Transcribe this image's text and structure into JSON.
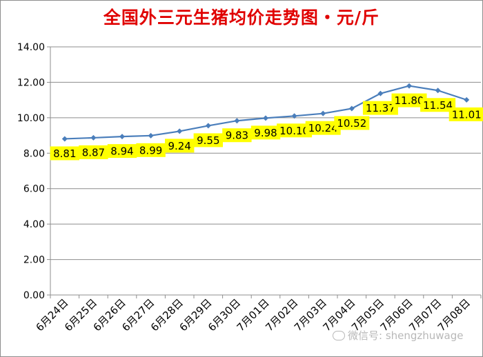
{
  "watermark": {
    "text": "微信号: shengzhuwage",
    "icon": "wechat-icon"
  },
  "chart_data": {
    "type": "line",
    "title": "全国外三元生猪均价走势图・元/斤",
    "xlabel": "",
    "ylabel": "",
    "categories": [
      "6月24日",
      "6月25日",
      "6月26日",
      "6月27日",
      "6月28日",
      "6月29日",
      "6月30日",
      "7月01日",
      "7月02日",
      "7月03日",
      "7月04日",
      "7月05日",
      "7月06日",
      "7月07日",
      "7月08日"
    ],
    "series": [
      {
        "values": [
          8.81,
          8.87,
          8.94,
          8.99,
          9.24,
          9.55,
          9.83,
          9.98,
          10.1,
          10.24,
          10.52,
          11.37,
          11.8,
          11.54,
          11.01
        ]
      }
    ],
    "value_labels": [
      "8.81",
      "8.87",
      "8.94",
      "8.99",
      "9.24",
      "9.55",
      "9.83",
      "9.98",
      "10.10",
      "10.24",
      "10.52",
      "11.37",
      "11.80",
      "11.54",
      "11.01"
    ],
    "ylim": [
      0,
      14
    ],
    "yticks": [
      "0.00",
      "2.00",
      "4.00",
      "6.00",
      "8.00",
      "10.00",
      "12.00",
      "14.00"
    ],
    "grid": true,
    "legend": "none",
    "colors": {
      "line": "#4a7ebb",
      "label_bg": "#ffff00",
      "title": "#e00000"
    }
  }
}
